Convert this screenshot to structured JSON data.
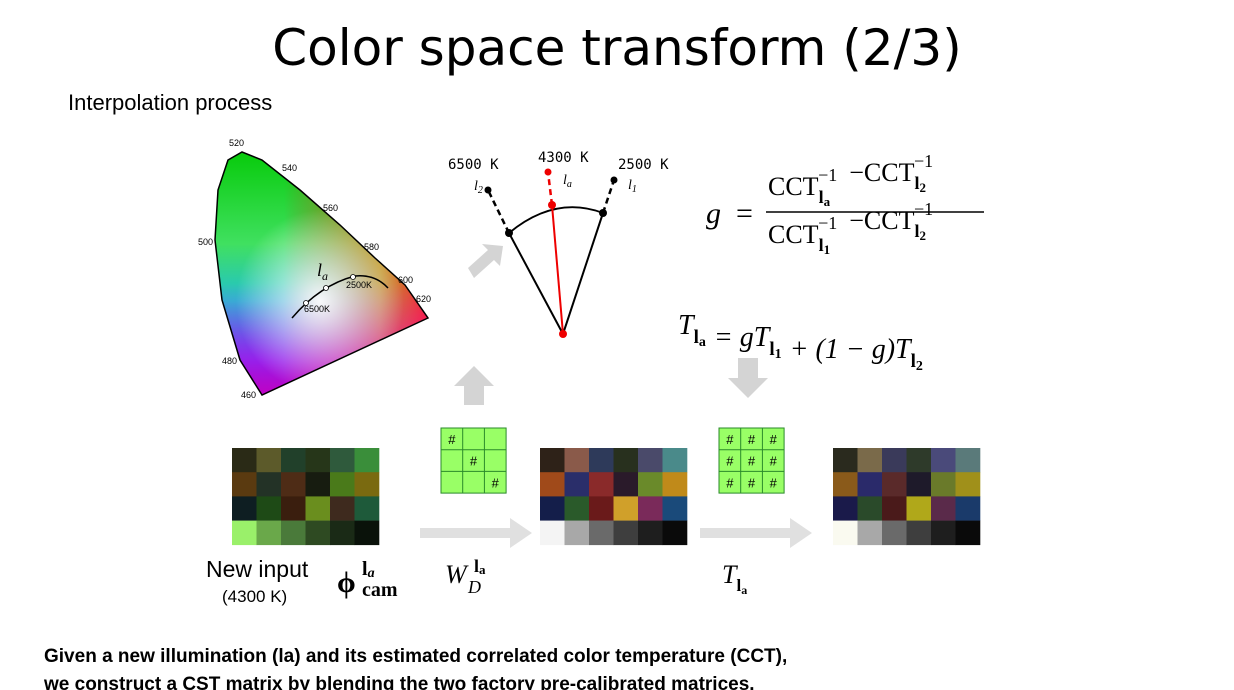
{
  "title": "Color space transform (2/3)",
  "subtitle": "Interpolation process",
  "chromaticity": {
    "wavelengths": [
      "520",
      "540",
      "560",
      "580",
      "600",
      "620",
      "500",
      "480",
      "460"
    ],
    "la_base": "l",
    "la_sub": "a",
    "k_2500": "2500K",
    "k_6500": "6500K"
  },
  "arc": {
    "left": {
      "temp": "6500  K",
      "base": "l",
      "sub": "2"
    },
    "mid": {
      "temp": "4300  K",
      "base": "l",
      "sub": "a"
    },
    "right": {
      "temp": "2500  K",
      "base": "l",
      "sub": "1"
    }
  },
  "formula_g": {
    "lhs": "g",
    "eq": "=",
    "numerator": [
      {
        "base": "CCT",
        "sub": "l",
        "subsub": "a",
        "sup": "−1"
      },
      {
        "op": "−"
      },
      {
        "base": "CCT",
        "sub": "l",
        "subsub": "2",
        "sup": "−1"
      }
    ],
    "denominator": [
      {
        "base": "CCT",
        "sub": "l",
        "subsub": "1",
        "sup": "−1"
      },
      {
        "op": "−"
      },
      {
        "base": "CCT",
        "sub": "l",
        "subsub": "2",
        "sup": "−1"
      }
    ]
  },
  "formula_t": {
    "parts": [
      {
        "text": "T",
        "sub": "l",
        "subsub": "a"
      },
      {
        "text": "= gT",
        "sub": "l",
        "subsub": "1"
      },
      {
        "text": "+ (1 − g)T",
        "sub": "l",
        "subsub": "2"
      }
    ]
  },
  "input_label": {
    "line1": "New input",
    "line2": "(4300 K)"
  },
  "phi": {
    "base": "ϕ",
    "sup_base": "l",
    "sup_sub": "a",
    "sub": "cam"
  },
  "wd": {
    "base": "W",
    "sub": "D",
    "sup_base": "l",
    "sup_sub": "a"
  },
  "t_label": {
    "base": "T",
    "sub": "l",
    "subsub": "a"
  },
  "matrix_diag": {
    "cells": [
      "#",
      "#",
      "#"
    ],
    "color": "#99ff66"
  },
  "matrix_full": {
    "cells": [
      "#",
      "#",
      "#",
      "#",
      "#",
      "#",
      "#",
      "#",
      "#"
    ],
    "color": "#99ff66"
  },
  "checkers": [
    {
      "colors": [
        [
          "#2a2a16",
          "#5c5a2a",
          "#21402a",
          "#263619",
          "#2f5a3c",
          "#3a8e3a"
        ],
        [
          "#5a3a10",
          "#233226",
          "#4e2c16",
          "#171c10",
          "#4a7a1a",
          "#7a6a10"
        ],
        [
          "#0e1e22",
          "#1e4a16",
          "#3a1e0e",
          "#6a8e1e",
          "#3e2a1e",
          "#1e5a3a"
        ],
        [
          "#9af06a",
          "#6aa84a",
          "#4a7a3a",
          "#2e4a22",
          "#1a2a16",
          "#0a120a"
        ]
      ]
    },
    {
      "colors": [
        [
          "#2e2218",
          "#8a5a4a",
          "#2e3a5a",
          "#28301e",
          "#4a4a6a",
          "#4a8a8a"
        ],
        [
          "#a04a1a",
          "#2a2e6a",
          "#8a2a2a",
          "#2a1a2a",
          "#6a8a2a",
          "#c08a1a"
        ],
        [
          "#141e4a",
          "#2a5a2a",
          "#6a1a1a",
          "#d0a02a",
          "#7a2a5a",
          "#1a4a7a"
        ],
        [
          "#f4f4f4",
          "#a8a8a8",
          "#6a6a6a",
          "#3e3e3e",
          "#1e1e1e",
          "#0a0a0a"
        ]
      ]
    },
    {
      "colors": [
        [
          "#2a2a1e",
          "#7a6a4a",
          "#3a3a5a",
          "#2e3a2a",
          "#4a4a7a",
          "#5a7a7a"
        ],
        [
          "#8a5a1a",
          "#2a2a6a",
          "#5a2a2a",
          "#1e1a2a",
          "#6a7a2a",
          "#a0901a"
        ],
        [
          "#1a1a4a",
          "#2a4a2a",
          "#4a1a1a",
          "#b0a81a",
          "#5a2a4a",
          "#1a3a6a"
        ],
        [
          "#fafaf0",
          "#a8a8a8",
          "#6a6a6a",
          "#3e3e3e",
          "#1e1e1e",
          "#0a0a0a"
        ]
      ]
    }
  ],
  "caption": {
    "line1": "Given a new illumination (la) and its estimated correlated color temperature (CCT),",
    "line2": "we  construct a CST matrix by blending the two factory pre-calibrated matrices."
  }
}
